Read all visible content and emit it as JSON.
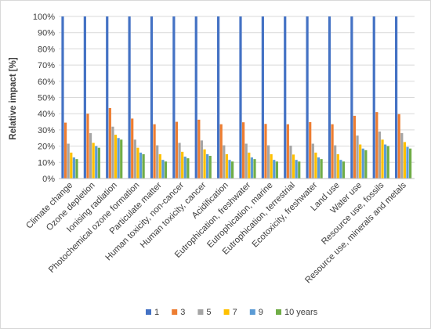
{
  "chart_data": {
    "type": "bar",
    "ylabel": "Relative impact [%]",
    "xlabel": "",
    "ylim": [
      0,
      100
    ],
    "y_ticks": [
      "0%",
      "10%",
      "20%",
      "30%",
      "40%",
      "50%",
      "60%",
      "70%",
      "80%",
      "90%",
      "100%"
    ],
    "grid": "horizontal",
    "legend_position": "bottom",
    "categories": [
      "Climate change",
      "Ozone depletion",
      "Ionising radiation",
      "Photochemical ozone formation",
      "Particulate matter",
      "Human toxicity, non-cancer",
      "Human toxicity, cancer",
      "Acidification",
      "Eutrophication, freshwater",
      "Eutrophication, marine",
      "Eutrophication, terrestrial",
      "Ecotoxicity, freshwater",
      "Land use",
      "Water use",
      "Resource use, fossils",
      "Resource use, minerals and metals"
    ],
    "series": [
      {
        "name": "1",
        "color": "#4472c4",
        "values": [
          100,
          100,
          100,
          100,
          100,
          100,
          100,
          100,
          100,
          100,
          100,
          100,
          100,
          100,
          100,
          100
        ]
      },
      {
        "name": "3",
        "color": "#ed7d31",
        "values": [
          34.5,
          40,
          43.5,
          37,
          33.5,
          35,
          36.3,
          33.5,
          34.7,
          33.7,
          33.5,
          34.8,
          33.5,
          38.7,
          41,
          39.7
        ]
      },
      {
        "name": "5",
        "color": "#a5a5a5",
        "values": [
          21.5,
          28,
          32,
          24,
          20.5,
          22,
          23.5,
          20.5,
          21.5,
          20.5,
          20.3,
          21.5,
          20.5,
          26.5,
          29,
          28
        ]
      },
      {
        "name": "7",
        "color": "#ffc000",
        "values": [
          16,
          22,
          27,
          19,
          15,
          16.5,
          18,
          15,
          16,
          15,
          14.8,
          16,
          15,
          21,
          24,
          22.5
        ]
      },
      {
        "name": "9",
        "color": "#5b9bd5",
        "values": [
          13,
          20,
          25,
          16,
          11.5,
          13.5,
          15,
          11.5,
          13,
          11.5,
          11.5,
          13,
          11.5,
          18.5,
          21,
          19.5
        ]
      },
      {
        "name": "10 years",
        "color": "#70ad47",
        "values": [
          12,
          19,
          24,
          15,
          10.5,
          12.5,
          14,
          10.5,
          12,
          10.5,
          10.5,
          12,
          10.5,
          17.5,
          20,
          18.5
        ]
      }
    ]
  }
}
